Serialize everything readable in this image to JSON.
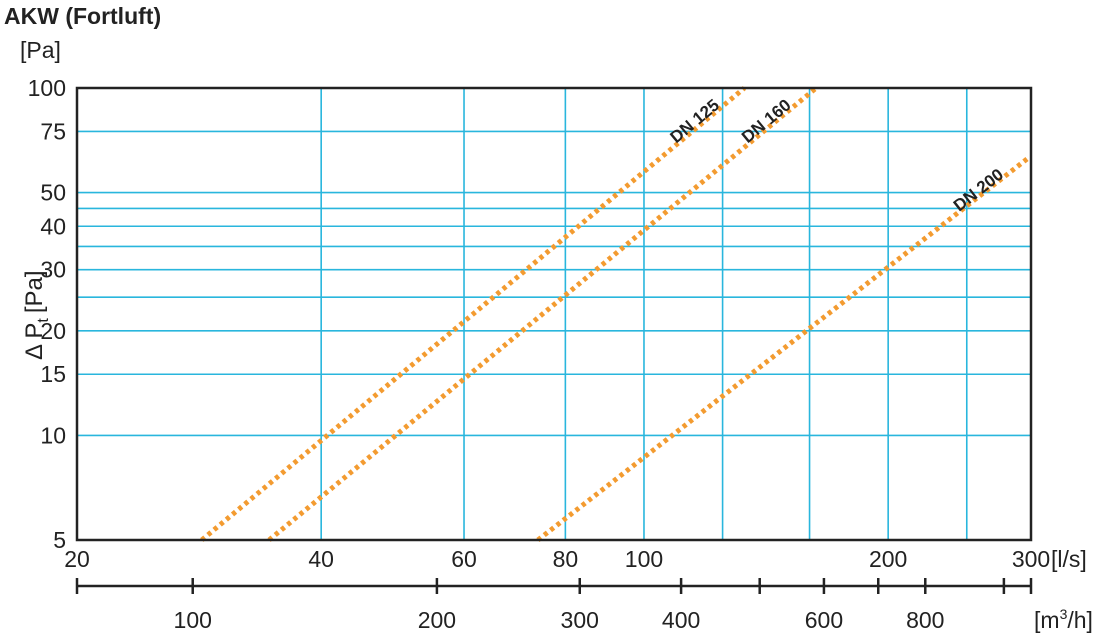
{
  "chart_data": {
    "type": "line",
    "title": "AKW (Fortluft)",
    "y_unit_label": "[Pa]",
    "ylabel": "Δ P",
    "ylabel_subscript": "t",
    "ylabel_unit": "[Pa]",
    "x_unit_label": "[l/s]",
    "x2_unit_label": "[m",
    "x2_unit_sup": "3",
    "x2_unit_tail": "/h]",
    "x_scale": "log",
    "y_scale": "log",
    "xlim": [
      20,
      300
    ],
    "ylim": [
      5,
      100
    ],
    "grid": true,
    "x_ticks": [
      20,
      40,
      60,
      80,
      100,
      200,
      300
    ],
    "x_tick_labels": [
      "20",
      "40",
      "60",
      "80",
      "100",
      "200",
      "300"
    ],
    "x_grid": [
      40,
      60,
      80,
      100,
      125,
      160,
      200,
      250
    ],
    "y_ticks": [
      5,
      10,
      15,
      20,
      30,
      40,
      50,
      75,
      100
    ],
    "y_tick_labels": [
      "5",
      "10",
      "15",
      "20",
      "30",
      "40",
      "50",
      "75",
      "100"
    ],
    "y_grid": [
      10,
      15,
      20,
      25,
      30,
      35,
      40,
      45,
      50,
      75
    ],
    "x2_ticks": [
      100,
      200,
      300,
      400,
      600,
      800
    ],
    "x2_tick_labels": [
      "100",
      "200",
      "300",
      "400",
      "600",
      "800"
    ],
    "x2_minor_ticks": [
      500,
      700,
      1000
    ],
    "series": [
      {
        "name": "DN 125",
        "x": [
          28.5,
          133
        ],
        "y": [
          5,
          100
        ]
      },
      {
        "name": "DN 160",
        "x": [
          34.5,
          163
        ],
        "y": [
          5,
          100
        ]
      },
      {
        "name": "DN 200",
        "x": [
          74,
          298
        ],
        "y": [
          5,
          63
        ]
      }
    ]
  },
  "colors": {
    "grid": "#29b6dd",
    "series": "#f39b30",
    "axis": "#222222"
  }
}
